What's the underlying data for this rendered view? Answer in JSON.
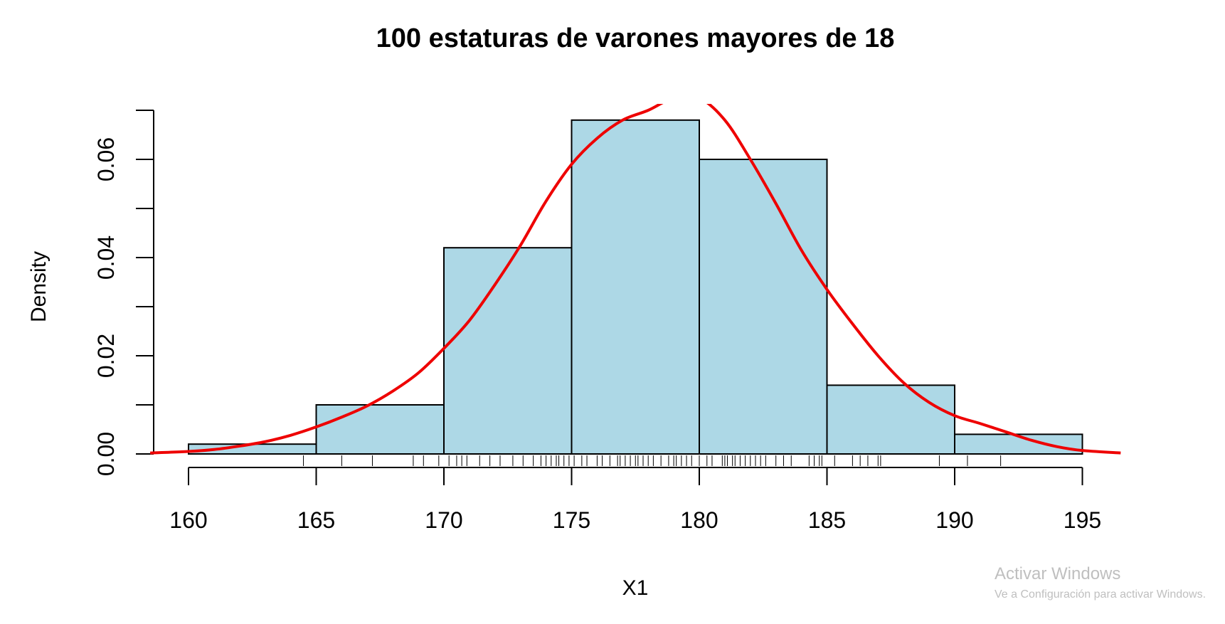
{
  "chart_data": {
    "type": "histogram",
    "title": "100 estaturas de varones mayores de 18",
    "xlabel": "X1",
    "ylabel": "Density",
    "xlim": [
      158.5,
      196.5
    ],
    "ylim": [
      0,
      0.07
    ],
    "x_ticks": [
      "160",
      "165",
      "170",
      "175",
      "180",
      "185",
      "190",
      "195"
    ],
    "y_ticks": [
      "0.00",
      "0.02",
      "0.04",
      "0.06"
    ],
    "y_minor_ticks": [
      0.01,
      0.03,
      0.05,
      0.07
    ],
    "bins": [
      {
        "from": 160,
        "to": 165,
        "density": 0.002
      },
      {
        "from": 165,
        "to": 170,
        "density": 0.01
      },
      {
        "from": 170,
        "to": 175,
        "density": 0.042
      },
      {
        "from": 175,
        "to": 180,
        "density": 0.068
      },
      {
        "from": 180,
        "to": 185,
        "density": 0.06
      },
      {
        "from": 185,
        "to": 190,
        "density": 0.014
      },
      {
        "from": 190,
        "to": 195,
        "density": 0.004
      }
    ],
    "bar_fill": "#add8e6",
    "bar_edge": "#000000",
    "density_curve": {
      "color": "#ee0000",
      "points": [
        [
          158.5,
          0.0002
        ],
        [
          160,
          0.0005
        ],
        [
          161,
          0.0009
        ],
        [
          162,
          0.0016
        ],
        [
          163,
          0.0025
        ],
        [
          164,
          0.0038
        ],
        [
          165,
          0.0055
        ],
        [
          166,
          0.0075
        ],
        [
          167,
          0.0098
        ],
        [
          168,
          0.0128
        ],
        [
          169,
          0.0165
        ],
        [
          170,
          0.0215
        ],
        [
          171,
          0.0272
        ],
        [
          172,
          0.0345
        ],
        [
          173,
          0.0425
        ],
        [
          174,
          0.0515
        ],
        [
          175,
          0.059
        ],
        [
          176,
          0.0643
        ],
        [
          177,
          0.068
        ],
        [
          178,
          0.07
        ],
        [
          179,
          0.0725
        ],
        [
          180,
          0.0725
        ],
        [
          181,
          0.068
        ],
        [
          182,
          0.06
        ],
        [
          183,
          0.051
        ],
        [
          184,
          0.0415
        ],
        [
          185,
          0.0335
        ],
        [
          186,
          0.0265
        ],
        [
          187,
          0.02
        ],
        [
          188,
          0.0145
        ],
        [
          189,
          0.0105
        ],
        [
          190,
          0.0078
        ],
        [
          191,
          0.0062
        ],
        [
          192,
          0.0045
        ],
        [
          193,
          0.0028
        ],
        [
          194,
          0.0015
        ],
        [
          195,
          0.0007
        ],
        [
          196.5,
          0.0002
        ]
      ]
    },
    "rug": [
      164.5,
      166.0,
      167.2,
      168.8,
      169.2,
      169.8,
      170.2,
      170.5,
      170.7,
      170.9,
      171.4,
      171.8,
      172.2,
      172.7,
      173.1,
      173.5,
      173.8,
      174.0,
      174.2,
      174.4,
      174.5,
      174.7,
      174.9,
      175.1,
      175.4,
      175.6,
      176.0,
      176.2,
      176.5,
      176.8,
      176.9,
      177.1,
      177.3,
      177.5,
      177.6,
      177.8,
      178.0,
      178.2,
      178.5,
      178.8,
      179.0,
      179.1,
      179.3,
      179.5,
      179.7,
      180.0,
      180.3,
      180.5,
      180.9,
      181.0,
      181.1,
      181.3,
      181.4,
      181.6,
      181.8,
      182.0,
      182.2,
      182.4,
      182.6,
      183.0,
      183.3,
      183.6,
      184.3,
      184.5,
      184.7,
      184.8,
      185.3,
      186.0,
      186.3,
      186.6,
      187.0,
      187.1,
      189.4,
      190.5,
      191.8
    ],
    "grid": false,
    "legend": "none"
  },
  "watermark": {
    "title": "Activar Windows",
    "subtitle": "Ve a Configuración para activar Windows."
  }
}
